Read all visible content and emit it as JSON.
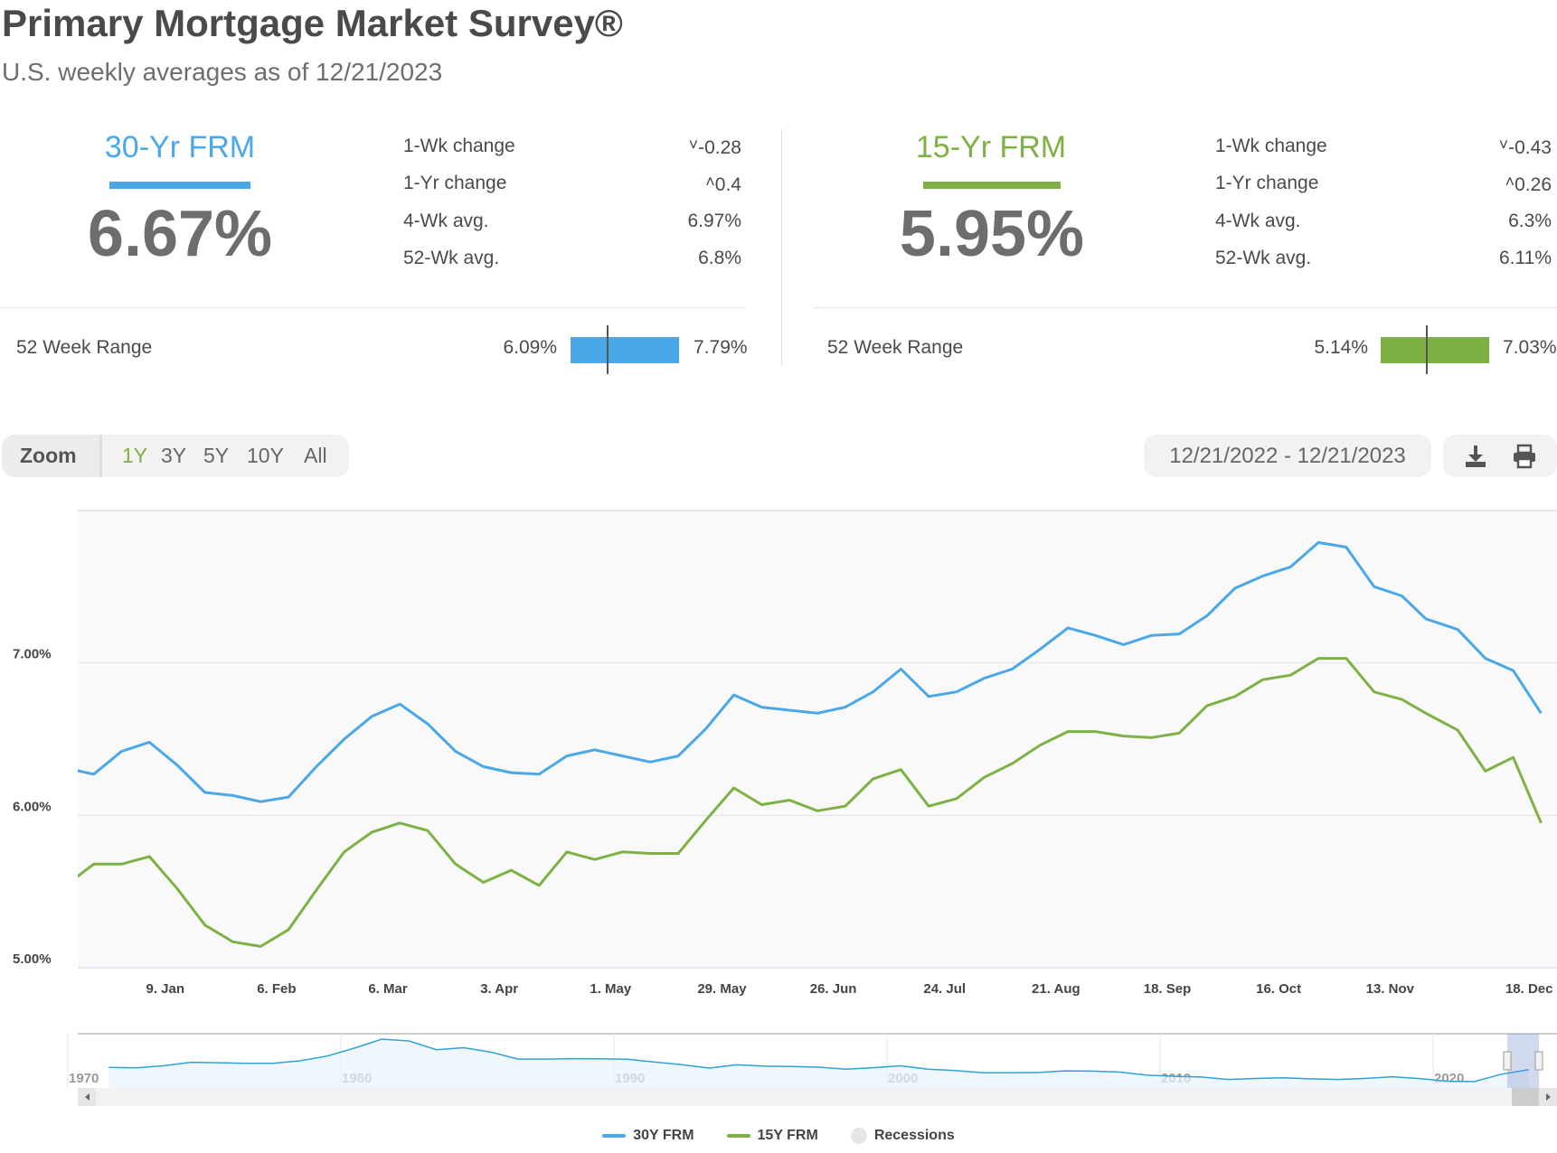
{
  "header": {
    "title": "Primary Mortgage Market Survey®",
    "subtitle": "U.S. weekly averages as of 12/21/2023"
  },
  "products": [
    {
      "name": "30-Yr FRM",
      "color": "#4aa8e8",
      "rate": "6.67%",
      "stats": [
        {
          "label": "1-Wk change",
          "value": "-0.28",
          "direction": "down"
        },
        {
          "label": "1-Yr change",
          "value": "0.4",
          "direction": "up"
        },
        {
          "label": "4-Wk avg.",
          "value": "6.97%"
        },
        {
          "label": "52-Wk avg.",
          "value": "6.8%"
        }
      ],
      "range": {
        "label": "52 Week Range",
        "low": "6.09%",
        "high": "7.79%",
        "low_value": 6.09,
        "high_value": 7.79,
        "current_value": 6.67
      }
    },
    {
      "name": "15-Yr FRM",
      "color": "#7db144",
      "rate": "5.95%",
      "stats": [
        {
          "label": "1-Wk change",
          "value": "-0.43",
          "direction": "down"
        },
        {
          "label": "1-Yr change",
          "value": "0.26",
          "direction": "up"
        },
        {
          "label": "4-Wk avg.",
          "value": "6.3%"
        },
        {
          "label": "52-Wk avg.",
          "value": "6.11%"
        }
      ],
      "range": {
        "label": "52 Week Range",
        "low": "5.14%",
        "high": "7.03%",
        "low_value": 5.14,
        "high_value": 7.03,
        "current_value": 5.95
      }
    }
  ],
  "toolbar": {
    "zoom_label": "Zoom",
    "zoom_options": [
      "1Y",
      "3Y",
      "5Y",
      "10Y",
      "All"
    ],
    "active_zoom": "1Y",
    "active_color": "#7db144",
    "date_range": "12/21/2022 - 12/21/2023",
    "download_icon": "download-icon",
    "print_icon": "print-icon"
  },
  "chart_data": {
    "type": "line",
    "title": "",
    "xlabel": "",
    "ylabel": "",
    "xlim": [
      "2022-12-18",
      "2023-12-25"
    ],
    "ylim": [
      5,
      8
    ],
    "grid": true,
    "legend_placement": "bottom",
    "y_ticks": [
      {
        "value": 5,
        "label": "5.00%"
      },
      {
        "value": 6,
        "label": "6.00%"
      },
      {
        "value": 7,
        "label": "7.00%"
      }
    ],
    "x_ticks": [
      {
        "date": "2023-01-09",
        "label": "9. Jan"
      },
      {
        "date": "2023-02-06",
        "label": "6. Feb"
      },
      {
        "date": "2023-03-06",
        "label": "6. Mar"
      },
      {
        "date": "2023-04-03",
        "label": "3. Apr"
      },
      {
        "date": "2023-05-01",
        "label": "1. May"
      },
      {
        "date": "2023-05-29",
        "label": "29. May"
      },
      {
        "date": "2023-06-26",
        "label": "26. Jun"
      },
      {
        "date": "2023-07-24",
        "label": "24. Jul"
      },
      {
        "date": "2023-08-21",
        "label": "21. Aug"
      },
      {
        "date": "2023-09-18",
        "label": "18. Sep"
      },
      {
        "date": "2023-10-16",
        "label": "16. Oct"
      },
      {
        "date": "2023-11-13",
        "label": "13. Nov"
      },
      {
        "date": "2023-12-18",
        "label": "18. Dec"
      }
    ],
    "dates": [
      "2022-12-15",
      "2022-12-22",
      "2022-12-29",
      "2023-01-05",
      "2023-01-12",
      "2023-01-19",
      "2023-01-26",
      "2023-02-02",
      "2023-02-09",
      "2023-02-16",
      "2023-02-23",
      "2023-03-02",
      "2023-03-09",
      "2023-03-16",
      "2023-03-23",
      "2023-03-30",
      "2023-04-06",
      "2023-04-13",
      "2023-04-20",
      "2023-04-27",
      "2023-05-04",
      "2023-05-11",
      "2023-05-18",
      "2023-05-25",
      "2023-06-01",
      "2023-06-08",
      "2023-06-15",
      "2023-06-22",
      "2023-06-29",
      "2023-07-06",
      "2023-07-13",
      "2023-07-20",
      "2023-07-27",
      "2023-08-03",
      "2023-08-10",
      "2023-08-17",
      "2023-08-24",
      "2023-08-31",
      "2023-09-07",
      "2023-09-14",
      "2023-09-21",
      "2023-09-28",
      "2023-10-05",
      "2023-10-12",
      "2023-10-19",
      "2023-10-26",
      "2023-11-02",
      "2023-11-09",
      "2023-11-16",
      "2023-11-22",
      "2023-11-30",
      "2023-12-07",
      "2023-12-14",
      "2023-12-21"
    ],
    "series": [
      {
        "name": "30Y FRM",
        "color": "#4aa8e8",
        "values": [
          6.31,
          6.27,
          6.42,
          6.48,
          6.33,
          6.15,
          6.13,
          6.09,
          6.12,
          6.32,
          6.5,
          6.65,
          6.73,
          6.6,
          6.42,
          6.32,
          6.28,
          6.27,
          6.39,
          6.43,
          6.39,
          6.35,
          6.39,
          6.57,
          6.79,
          6.71,
          6.69,
          6.67,
          6.71,
          6.81,
          6.96,
          6.78,
          6.81,
          6.9,
          6.96,
          7.09,
          7.23,
          7.18,
          7.12,
          7.18,
          7.19,
          7.31,
          7.49,
          7.57,
          7.63,
          7.79,
          7.76,
          7.5,
          7.44,
          7.29,
          7.22,
          7.03,
          6.95,
          6.67
        ]
      },
      {
        "name": "15Y FRM",
        "color": "#7db144",
        "values": [
          5.54,
          5.68,
          5.68,
          5.73,
          5.52,
          5.28,
          5.17,
          5.14,
          5.25,
          5.51,
          5.76,
          5.89,
          5.95,
          5.9,
          5.68,
          5.56,
          5.64,
          5.54,
          5.76,
          5.71,
          5.76,
          5.75,
          5.75,
          5.97,
          6.18,
          6.07,
          6.1,
          6.03,
          6.06,
          6.24,
          6.3,
          6.06,
          6.11,
          6.25,
          6.34,
          6.46,
          6.55,
          6.55,
          6.52,
          6.51,
          6.54,
          6.72,
          6.78,
          6.89,
          6.92,
          7.03,
          7.03,
          6.81,
          6.76,
          6.67,
          6.56,
          6.29,
          6.38,
          5.95
        ]
      }
    ],
    "navigator": {
      "year_labels": [
        "1970",
        "1980",
        "1990",
        "2000",
        "2010",
        "2020"
      ],
      "years": [
        1971,
        1972,
        1973,
        1974,
        1975,
        1976,
        1977,
        1978,
        1979,
        1980,
        1981,
        1982,
        1983,
        1984,
        1985,
        1986,
        1987,
        1988,
        1989,
        1990,
        1991,
        1992,
        1993,
        1994,
        1995,
        1996,
        1997,
        1998,
        1999,
        2000,
        2001,
        2002,
        2003,
        2004,
        2005,
        2006,
        2007,
        2008,
        2009,
        2010,
        2011,
        2012,
        2013,
        2014,
        2015,
        2016,
        2017,
        2018,
        2019,
        2020,
        2021,
        2022,
        2023
      ],
      "values": [
        7.54,
        7.38,
        8.04,
        9.19,
        9.05,
        8.87,
        8.85,
        9.64,
        11.2,
        13.74,
        16.63,
        16.04,
        13.24,
        13.88,
        12.43,
        10.19,
        10.21,
        10.34,
        10.32,
        10.13,
        9.25,
        8.39,
        7.31,
        8.38,
        7.93,
        7.81,
        7.6,
        6.94,
        7.44,
        8.05,
        6.97,
        6.54,
        5.83,
        5.84,
        5.87,
        6.41,
        6.34,
        6.03,
        5.04,
        4.69,
        4.45,
        3.66,
        3.98,
        4.17,
        3.85,
        3.65,
        3.99,
        4.54,
        3.94,
        3.11,
        2.96,
        5.34,
        6.81
      ]
    },
    "legend": [
      {
        "label": "30Y FRM",
        "color": "#4aa8e8"
      },
      {
        "label": "15Y FRM",
        "color": "#7db144"
      },
      {
        "label": "Recessions",
        "color": "#e6e6e6"
      }
    ]
  }
}
